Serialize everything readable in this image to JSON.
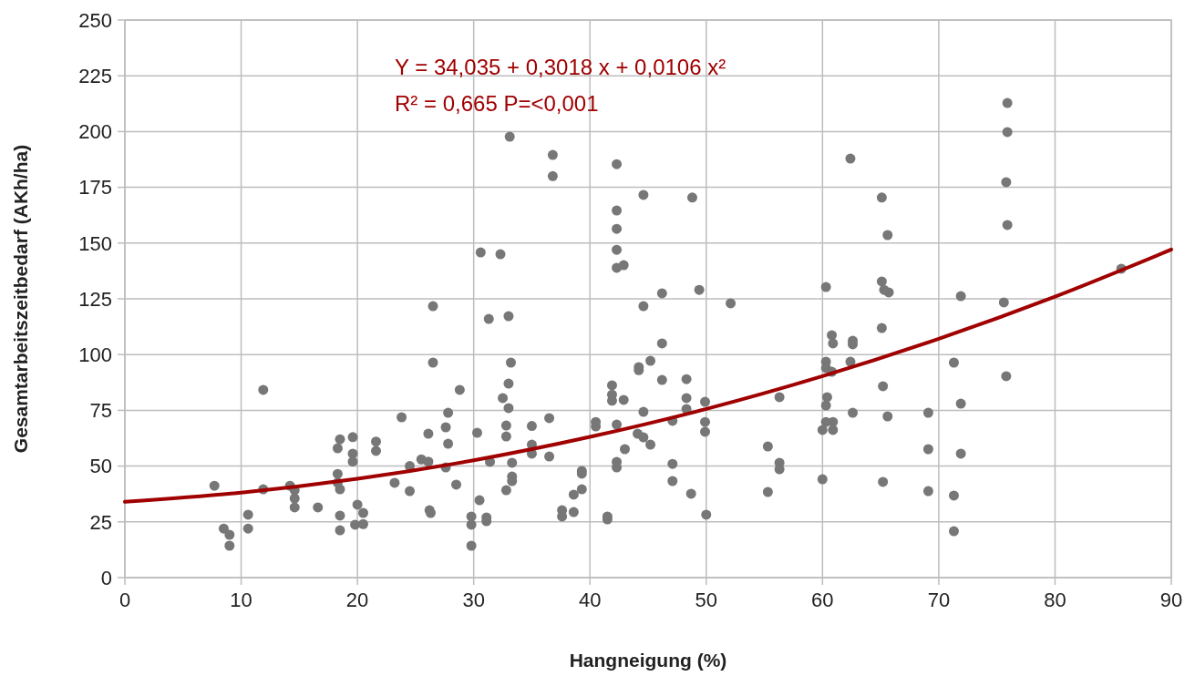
{
  "chart_data": {
    "type": "scatter",
    "xlabel": "Hangneigung (%)",
    "ylabel": "Gesamtarbeitszeitbedarf (AKh/ha)",
    "annotations": [
      "Y = 34,035 + 0,3018 x + 0,0106 x²",
      "R² = 0,665 P=<0,001"
    ],
    "xlim": [
      0,
      90
    ],
    "xticks": [
      0,
      10,
      20,
      30,
      40,
      50,
      60,
      70,
      80,
      90
    ],
    "ylim": [
      0,
      250
    ],
    "yticks": [
      0,
      25,
      50,
      75,
      100,
      125,
      150,
      175,
      200,
      225,
      250
    ],
    "grid": true,
    "marker": "circle",
    "series": [
      {
        "color": "#777777",
        "x": [
          7.7,
          8.5,
          9,
          9,
          10.6,
          10.6,
          11.9,
          11.9,
          14.2,
          14.6,
          14.6,
          14.6,
          16.6,
          18.3,
          18.5,
          19.6,
          19.6,
          19.6,
          18.3,
          18.3,
          18.5,
          18.5,
          18.5,
          20,
          20.5,
          19.8,
          20.5,
          21.6,
          21.6,
          23.8,
          23.2,
          24.5,
          24.5,
          25.5,
          26.1,
          26.5,
          26.5,
          26.1,
          26.2,
          26.3,
          27.6,
          27.8,
          27.8,
          27.6,
          28.8,
          28.5,
          29.8,
          29.8,
          29.8,
          30.5,
          30.3,
          31.1,
          31.1,
          31.3,
          31.4,
          32.5,
          33,
          33.2,
          33,
          33,
          32.8,
          32.8,
          33.3,
          33.3,
          33.3,
          32.8,
          32.3,
          30.6,
          33.1,
          35,
          35,
          35,
          36.8,
          36.8,
          36.5,
          36.5,
          42.3,
          42.3,
          42.3,
          42.3,
          42.3,
          42.9,
          44.6,
          48.8,
          62.4,
          65.1,
          65.6,
          65.1,
          65.3,
          65.7,
          44.6,
          46.2,
          49.4,
          52.1,
          60.3,
          46.2,
          45.2,
          44.2,
          44.2,
          46.2,
          48.3,
          48.3,
          49.9,
          48.3,
          47.1,
          49.9,
          49.9,
          44.6,
          41.9,
          41.9,
          41.9,
          42.9,
          42.3,
          40.5,
          40.5,
          44.1,
          44.6,
          45.2,
          43,
          42.3,
          42.3,
          47.1,
          47.1,
          48.7,
          50,
          39.3,
          39.3,
          39.3,
          38.6,
          38.6,
          37.6,
          37.6,
          41.5,
          41.5,
          56.3,
          55.3,
          56.3,
          56.3,
          55.3,
          60.3,
          60.8,
          60.9,
          62.6,
          62.6,
          62.4,
          60.3,
          60.8,
          60.4,
          60.3,
          60.3,
          60.9,
          60,
          60.9,
          62.6,
          60,
          65.1,
          65.2,
          65.6,
          65.2,
          75.9,
          75.9,
          75.8,
          75.9,
          85.7,
          71.9,
          75.6,
          71.3,
          75.8,
          71.9,
          69.1,
          69.1,
          71.9,
          69.1,
          71.3,
          71.3
        ],
        "values": [
          41.2,
          22,
          19.2,
          14.3,
          28.2,
          22,
          84.2,
          39.6,
          41.2,
          39.2,
          35.5,
          31.5,
          31.5,
          58,
          62,
          63,
          55.6,
          52,
          46.5,
          42.5,
          39.6,
          27.8,
          21.2,
          32.7,
          29,
          23.7,
          24,
          61,
          56.8,
          71.9,
          42.5,
          50,
          38.8,
          53,
          52,
          121.7,
          96.4,
          64.5,
          30.2,
          29,
          67.4,
          73.9,
          60,
          49.4,
          84.2,
          41.7,
          27.4,
          23.7,
          14.3,
          34.7,
          64.9,
          27,
          25.3,
          116,
          51.9,
          80.5,
          117.2,
          96.4,
          87,
          76,
          68.2,
          63.3,
          51.5,
          45.3,
          43.3,
          39.2,
          145,
          145.8,
          197.7,
          68,
          59.6,
          55.6,
          189.5,
          180,
          71.5,
          54.3,
          185.4,
          164.6,
          156.4,
          147,
          138.9,
          140.1,
          171.6,
          170.4,
          187.9,
          170.4,
          153.6,
          132.8,
          129,
          127.9,
          121.7,
          127.5,
          129,
          123,
          130.3,
          105,
          97.2,
          94.4,
          93,
          88.6,
          89,
          80.5,
          78.8,
          75.6,
          70.3,
          69.8,
          65.4,
          74.3,
          86.2,
          82,
          79.3,
          79.7,
          68.6,
          69.8,
          67.8,
          64.5,
          62.9,
          59.6,
          57.6,
          51.9,
          49.4,
          51,
          43.3,
          37.6,
          28.2,
          47.8,
          46.6,
          39.6,
          37.2,
          29.4,
          30.2,
          27.4,
          27.4,
          26.1,
          80.9,
          58.8,
          51.5,
          48.6,
          38.4,
          96.8,
          108.7,
          105,
          106.2,
          104.6,
          96.8,
          94,
          92.3,
          80.9,
          77.2,
          69.8,
          69.8,
          66.2,
          66.2,
          73.9,
          44.1,
          111.9,
          85.8,
          72.3,
          42.9,
          212.8,
          199.8,
          177.3,
          158.1,
          138.5,
          126.2,
          123.4,
          96.4,
          90.3,
          78,
          73.9,
          57.6,
          55.6,
          38.8,
          36.8,
          20.8
        ]
      },
      {
        "type": "line",
        "color": "#a00000",
        "marker": "none",
        "line_style": "solid",
        "x": [
          0,
          10,
          20,
          30,
          40,
          50,
          60,
          70,
          80,
          90
        ],
        "values": [
          34,
          38.1,
          44.3,
          52.6,
          63.1,
          75.6,
          90.3,
          107.1,
          126,
          147.1
        ]
      }
    ]
  }
}
